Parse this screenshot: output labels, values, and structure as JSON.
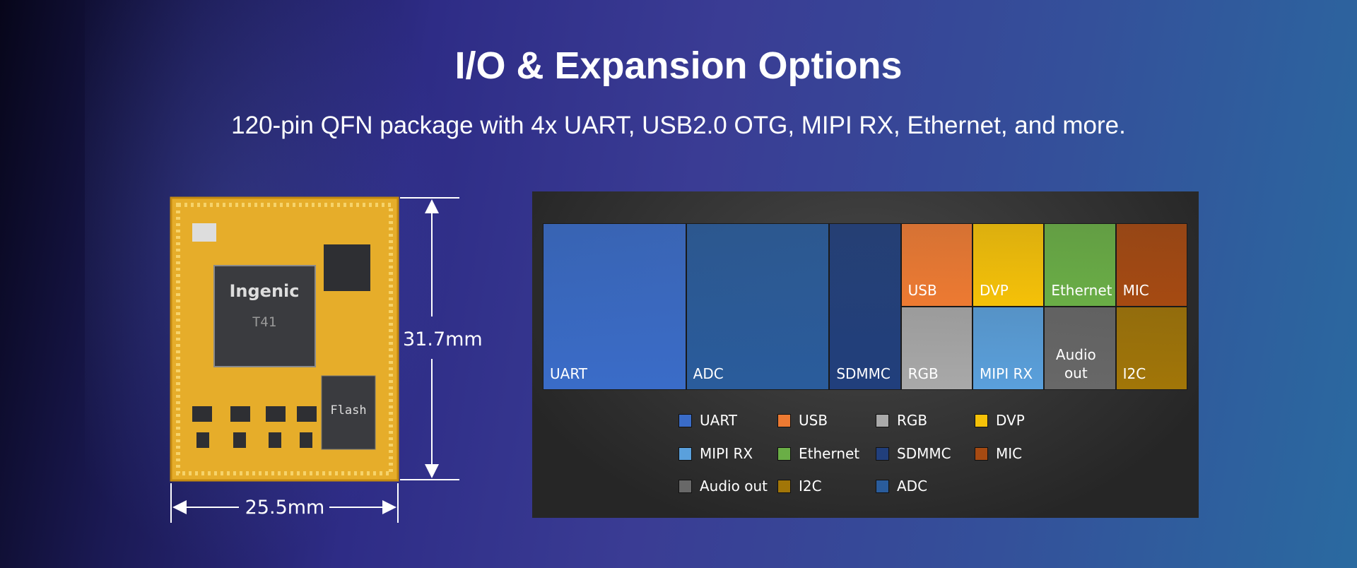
{
  "header": {
    "title": "I/O & Expansion Options",
    "subtitle": "120-pin QFN package with 4x UART, USB2.0 OTG, MIPI RX, Ethernet, and more."
  },
  "module": {
    "brand": "Ingenic",
    "model": "T41",
    "flash": "Flash",
    "height": "31.7mm",
    "width": "25.5mm"
  },
  "treemap": {
    "cells": [
      {
        "label": "UART",
        "color": "#3a6cc8"
      },
      {
        "label": "ADC",
        "color": "#2a5c9c"
      },
      {
        "label": "SDMMC",
        "color": "#213f7c"
      },
      {
        "label": "USB",
        "color": "#ed7a32"
      },
      {
        "label": "DVP",
        "color": "#f5c108"
      },
      {
        "label": "Ethernet",
        "color": "#6aae46"
      },
      {
        "label": "MIC",
        "color": "#a64a12"
      },
      {
        "label": "RGB",
        "color": "#a9a9a9"
      },
      {
        "label": "MIPI RX",
        "color": "#5aa0dc"
      },
      {
        "label": "Audio out",
        "color": "#686868"
      },
      {
        "label": "I2C",
        "color": "#a27608"
      }
    ],
    "legend": [
      {
        "label": "UART",
        "color": "#3a6cc8"
      },
      {
        "label": "USB",
        "color": "#ed7a32"
      },
      {
        "label": "RGB",
        "color": "#a9a9a9"
      },
      {
        "label": "DVP",
        "color": "#f5c108"
      },
      {
        "label": "MIPI RX",
        "color": "#5aa0dc"
      },
      {
        "label": "Ethernet",
        "color": "#6aae46"
      },
      {
        "label": "SDMMC",
        "color": "#213f7c"
      },
      {
        "label": "MIC",
        "color": "#a64a12"
      },
      {
        "label": "Audio out",
        "color": "#686868"
      },
      {
        "label": "I2C",
        "color": "#a27608"
      },
      {
        "label": "ADC",
        "color": "#2a5c9c"
      }
    ]
  }
}
